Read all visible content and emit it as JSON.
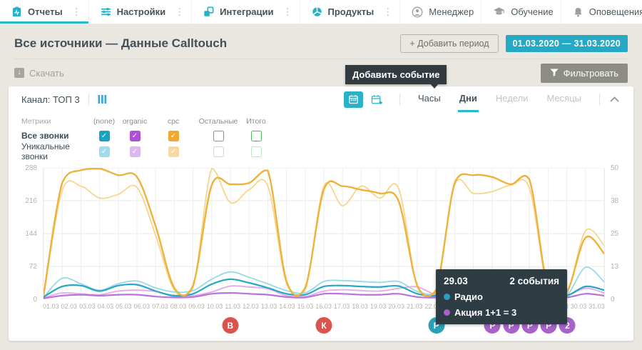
{
  "nav": {
    "left": [
      {
        "label": "Отчеты",
        "icon": "reports-icon",
        "active": true
      },
      {
        "label": "Настройки",
        "icon": "settings-icon",
        "active": false
      },
      {
        "label": "Интеграции",
        "icon": "integrations-icon",
        "active": false
      },
      {
        "label": "Продукты",
        "icon": "products-icon",
        "active": false
      }
    ],
    "right": [
      {
        "label": "Менеджер",
        "icon": "manager-icon"
      },
      {
        "label": "Обучение",
        "icon": "education-icon"
      },
      {
        "label": "Оповещения",
        "icon": "notifications-icon"
      }
    ]
  },
  "icons": {
    "menu_dots": "⋮",
    "check": "✓",
    "download": "↓"
  },
  "header": {
    "title": "Все источники — Данные Calltouch",
    "add_period": "+ Добавить период",
    "date_range": "01.03.2020 — 31.03.2020"
  },
  "toolbar": {
    "download": "Скачать",
    "filter": "Фильтровать",
    "add_event_tooltip": "Добавить событие"
  },
  "panel": {
    "channel": "Канал: ТОП 3",
    "tabs": [
      {
        "label": "Часы",
        "state": "inactive"
      },
      {
        "label": "Дни",
        "state": "active"
      },
      {
        "label": "Недели",
        "state": "muted"
      },
      {
        "label": "Месяцы",
        "state": "muted"
      }
    ],
    "metrics": {
      "title": "Метрики",
      "columns": [
        "(none)",
        "organic",
        "cpc",
        "Остальные",
        "Итого"
      ],
      "rows": [
        {
          "label": "Все звонки",
          "checks": [
            true,
            true,
            true,
            false,
            false
          ]
        },
        {
          "label": "Уникальные звонки",
          "checks": [
            true,
            true,
            true,
            false,
            false
          ],
          "muted": true
        }
      ]
    }
  },
  "colors": {
    "accent": "#29b8ce",
    "date_badge": "#25a9c5",
    "filter_button": "#8d8c85",
    "tooltip_bg": "#2e3c44",
    "checkbox": {
      "none": "#17a3c2",
      "organic": "#b14fd8",
      "cpc": "#f0a832",
      "other_border": "#8f8f89",
      "total_border": "#4cb85c"
    }
  },
  "chart_data": {
    "type": "line",
    "x": [
      "01.03",
      "02.03",
      "03.03",
      "04.03",
      "05.03",
      "06.03",
      "07.03",
      "08.03",
      "09.03",
      "10.03",
      "11.03",
      "12.03",
      "13.03",
      "14.03",
      "15.03",
      "16.03",
      "17.03",
      "18.03",
      "19.03",
      "20.03",
      "21.03",
      "22.03",
      "23.03",
      "24.03",
      "25.03",
      "26.03",
      "27.03",
      "28.03",
      "29.03",
      "30.03",
      "31.03"
    ],
    "y_axis_left": {
      "ticks": [
        288,
        216,
        144,
        72,
        0
      ],
      "range": [
        0,
        288
      ]
    },
    "y_axis_right": {
      "ticks": [
        50,
        38,
        25,
        13,
        0
      ],
      "range": [
        0,
        50
      ]
    },
    "grid": true,
    "series": [
      {
        "name": "Уникальные звонки cpc",
        "color": "#f6d68d",
        "width": 1.8,
        "values": [
          6,
          238,
          248,
          222,
          230,
          245,
          140,
          20,
          26,
          288,
          212,
          240,
          248,
          35,
          20,
          248,
          205,
          248,
          222,
          243,
          26,
          15,
          250,
          232,
          236,
          250,
          243,
          20,
          13,
          150,
          118
        ]
      },
      {
        "name": "Уникальные звонки (none)",
        "color": "#96d9e9",
        "width": 1.8,
        "values": [
          4,
          46,
          34,
          20,
          34,
          40,
          25,
          16,
          19,
          44,
          60,
          48,
          34,
          19,
          14,
          39,
          41,
          39,
          37,
          39,
          17,
          11,
          29,
          34,
          39,
          34,
          37,
          14,
          9,
          70,
          38
        ]
      },
      {
        "name": "Уникальные звонки organic",
        "color": "#e4aae8",
        "width": 1.8,
        "values": [
          3,
          14,
          12,
          10,
          18,
          20,
          17,
          6,
          8,
          16,
          29,
          27,
          23,
          8,
          6,
          18,
          21,
          19,
          18,
          24,
          27,
          10,
          12,
          15,
          33,
          19,
          24,
          11,
          8,
          24,
          14
        ]
      },
      {
        "name": "Все звонки organic",
        "color": "#b873dd",
        "width": 2.2,
        "values": [
          2,
          8,
          10,
          8,
          10,
          10,
          6,
          4,
          5,
          12,
          14,
          12,
          10,
          5,
          4,
          12,
          12,
          10,
          10,
          12,
          5,
          4,
          10,
          12,
          12,
          10,
          12,
          5,
          4,
          12,
          8
        ]
      },
      {
        "name": "Все звонки (none)",
        "color": "#28a6c3",
        "width": 2.2,
        "values": [
          5,
          28,
          30,
          18,
          30,
          32,
          18,
          8,
          12,
          33,
          44,
          36,
          25,
          12,
          10,
          28,
          30,
          28,
          27,
          29,
          12,
          8,
          24,
          27,
          28,
          25,
          27,
          10,
          8,
          28,
          20
        ]
      },
      {
        "name": "Все звонки cpc",
        "color": "#eeb23c",
        "width": 2.4,
        "values": [
          8,
          255,
          283,
          288,
          272,
          268,
          160,
          25,
          30,
          250,
          252,
          255,
          282,
          40,
          25,
          240,
          248,
          240,
          232,
          215,
          30,
          20,
          255,
          272,
          268,
          252,
          262,
          22,
          16,
          135,
          100
        ]
      }
    ]
  },
  "chart_tooltip": {
    "date": "29.03",
    "events_count": "2 события",
    "events": [
      {
        "name": "Радио",
        "color": "#2aa0b8"
      },
      {
        "name": "Акция 1+1 = 3",
        "color": "#a763c8"
      }
    ]
  },
  "event_markers": [
    {
      "label": "В",
      "date": "11.03",
      "color": "#d9534f"
    },
    {
      "label": "К",
      "date": "16.03",
      "color": "#d9534f"
    },
    {
      "label": "Р",
      "date": "22.03",
      "color": "#2aa0b8"
    },
    {
      "label": "Р",
      "date": "25.03",
      "color": "#a763c8"
    },
    {
      "label": "Р",
      "date": "26.03",
      "color": "#a763c8"
    },
    {
      "label": "Р",
      "date": "27.03",
      "color": "#a763c8"
    },
    {
      "label": "Р",
      "date": "28.03",
      "color": "#a763c8"
    },
    {
      "label": "2",
      "date": "29.03",
      "color": "#a763c8"
    }
  ]
}
